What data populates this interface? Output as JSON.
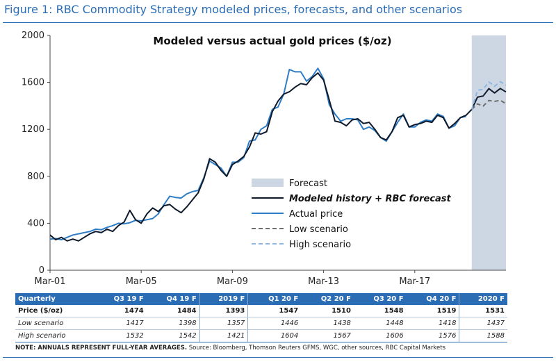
{
  "figure_title": "Figure 1: RBC Commodity Strategy modeled prices, forecasts, and other scenarios",
  "chart_data": {
    "type": "line",
    "title": "Modeled versus actual gold prices ($/oz)",
    "xlabel": "",
    "ylabel": "",
    "ylim": [
      0,
      2000
    ],
    "yticks": [
      0,
      400,
      800,
      1200,
      1600,
      2000
    ],
    "xticks": [
      "Mar-01",
      "Mar-05",
      "Mar-09",
      "Mar-13",
      "Mar-17"
    ],
    "x_range": [
      2001.0,
      2021.0
    ],
    "forecast_shade": [
      2019.5,
      2021.0
    ],
    "grid": false,
    "legend_position": "center",
    "legend": [
      {
        "label": "Forecast",
        "kind": "box",
        "color": "#cdd7e3"
      },
      {
        "label": "Modeled history + RBC forecast",
        "kind": "line",
        "color": "#0e1a2b"
      },
      {
        "label": "Actual price",
        "kind": "line",
        "color": "#2f7dc7"
      },
      {
        "label": "Low scenario",
        "kind": "dash",
        "color": "#6e6e6e"
      },
      {
        "label": "High scenario",
        "kind": "dash",
        "color": "#8eb6e2"
      }
    ],
    "series": [
      {
        "name": "Modeled history + RBC forecast",
        "color": "#0e1a2b",
        "points": [
          [
            2001.0,
            300
          ],
          [
            2001.25,
            260
          ],
          [
            2001.5,
            280
          ],
          [
            2001.75,
            250
          ],
          [
            2002.0,
            265
          ],
          [
            2002.25,
            250
          ],
          [
            2002.5,
            280
          ],
          [
            2002.75,
            310
          ],
          [
            2003.0,
            330
          ],
          [
            2003.25,
            320
          ],
          [
            2003.5,
            350
          ],
          [
            2003.75,
            330
          ],
          [
            2004.0,
            380
          ],
          [
            2004.25,
            410
          ],
          [
            2004.5,
            510
          ],
          [
            2004.75,
            430
          ],
          [
            2005.0,
            400
          ],
          [
            2005.25,
            480
          ],
          [
            2005.5,
            530
          ],
          [
            2005.75,
            500
          ],
          [
            2006.0,
            550
          ],
          [
            2006.25,
            560
          ],
          [
            2006.5,
            520
          ],
          [
            2006.75,
            490
          ],
          [
            2007.0,
            540
          ],
          [
            2007.25,
            600
          ],
          [
            2007.5,
            660
          ],
          [
            2007.75,
            780
          ],
          [
            2008.0,
            950
          ],
          [
            2008.25,
            920
          ],
          [
            2008.5,
            850
          ],
          [
            2008.75,
            800
          ],
          [
            2009.0,
            900
          ],
          [
            2009.25,
            930
          ],
          [
            2009.5,
            970
          ],
          [
            2009.75,
            1050
          ],
          [
            2010.0,
            1170
          ],
          [
            2010.25,
            1160
          ],
          [
            2010.5,
            1180
          ],
          [
            2010.75,
            1350
          ],
          [
            2011.0,
            1440
          ],
          [
            2011.25,
            1500
          ],
          [
            2011.5,
            1520
          ],
          [
            2011.75,
            1560
          ],
          [
            2012.0,
            1590
          ],
          [
            2012.25,
            1580
          ],
          [
            2012.5,
            1640
          ],
          [
            2012.75,
            1680
          ],
          [
            2013.0,
            1620
          ],
          [
            2013.25,
            1450
          ],
          [
            2013.5,
            1270
          ],
          [
            2013.75,
            1260
          ],
          [
            2014.0,
            1230
          ],
          [
            2014.25,
            1280
          ],
          [
            2014.5,
            1290
          ],
          [
            2014.75,
            1250
          ],
          [
            2015.0,
            1260
          ],
          [
            2015.25,
            1200
          ],
          [
            2015.5,
            1130
          ],
          [
            2015.75,
            1110
          ],
          [
            2016.0,
            1180
          ],
          [
            2016.25,
            1300
          ],
          [
            2016.5,
            1320
          ],
          [
            2016.75,
            1220
          ],
          [
            2017.0,
            1240
          ],
          [
            2017.25,
            1250
          ],
          [
            2017.5,
            1270
          ],
          [
            2017.75,
            1260
          ],
          [
            2018.0,
            1320
          ],
          [
            2018.25,
            1300
          ],
          [
            2018.5,
            1210
          ],
          [
            2018.75,
            1250
          ],
          [
            2019.0,
            1300
          ],
          [
            2019.25,
            1320
          ],
          [
            2019.5,
            1370
          ],
          [
            2019.75,
            1474
          ],
          [
            2020.0,
            1484
          ],
          [
            2020.25,
            1547
          ],
          [
            2020.5,
            1510
          ],
          [
            2020.75,
            1548
          ],
          [
            2021.0,
            1519
          ]
        ]
      },
      {
        "name": "Actual price",
        "color": "#2f7dc7",
        "points": [
          [
            2001.0,
            265
          ],
          [
            2001.25,
            270
          ],
          [
            2001.5,
            260
          ],
          [
            2001.75,
            280
          ],
          [
            2002.0,
            300
          ],
          [
            2002.25,
            310
          ],
          [
            2002.5,
            320
          ],
          [
            2002.75,
            330
          ],
          [
            2003.0,
            350
          ],
          [
            2003.25,
            345
          ],
          [
            2003.5,
            365
          ],
          [
            2003.75,
            380
          ],
          [
            2004.0,
            400
          ],
          [
            2004.25,
            395
          ],
          [
            2004.5,
            405
          ],
          [
            2004.75,
            425
          ],
          [
            2005.0,
            420
          ],
          [
            2005.25,
            430
          ],
          [
            2005.5,
            440
          ],
          [
            2005.75,
            480
          ],
          [
            2006.0,
            560
          ],
          [
            2006.25,
            630
          ],
          [
            2006.5,
            620
          ],
          [
            2006.75,
            615
          ],
          [
            2007.0,
            650
          ],
          [
            2007.25,
            670
          ],
          [
            2007.5,
            680
          ],
          [
            2007.75,
            790
          ],
          [
            2008.0,
            930
          ],
          [
            2008.25,
            900
          ],
          [
            2008.5,
            870
          ],
          [
            2008.75,
            800
          ],
          [
            2009.0,
            920
          ],
          [
            2009.25,
            920
          ],
          [
            2009.5,
            960
          ],
          [
            2009.75,
            1100
          ],
          [
            2010.0,
            1110
          ],
          [
            2010.25,
            1200
          ],
          [
            2010.5,
            1230
          ],
          [
            2010.75,
            1370
          ],
          [
            2011.0,
            1390
          ],
          [
            2011.25,
            1500
          ],
          [
            2011.5,
            1710
          ],
          [
            2011.75,
            1690
          ],
          [
            2012.0,
            1690
          ],
          [
            2012.25,
            1610
          ],
          [
            2012.5,
            1650
          ],
          [
            2012.75,
            1720
          ],
          [
            2013.0,
            1630
          ],
          [
            2013.25,
            1410
          ],
          [
            2013.5,
            1330
          ],
          [
            2013.75,
            1270
          ],
          [
            2014.0,
            1290
          ],
          [
            2014.25,
            1290
          ],
          [
            2014.5,
            1280
          ],
          [
            2014.75,
            1200
          ],
          [
            2015.0,
            1220
          ],
          [
            2015.25,
            1190
          ],
          [
            2015.5,
            1130
          ],
          [
            2015.75,
            1100
          ],
          [
            2016.0,
            1180
          ],
          [
            2016.25,
            1260
          ],
          [
            2016.5,
            1330
          ],
          [
            2016.75,
            1220
          ],
          [
            2017.0,
            1220
          ],
          [
            2017.25,
            1260
          ],
          [
            2017.5,
            1280
          ],
          [
            2017.75,
            1270
          ],
          [
            2018.0,
            1330
          ],
          [
            2018.25,
            1310
          ],
          [
            2018.5,
            1210
          ],
          [
            2018.75,
            1230
          ],
          [
            2019.0,
            1300
          ],
          [
            2019.25,
            1310
          ]
        ]
      },
      {
        "name": "Low scenario",
        "color": "#6e6e6e",
        "dashed": true,
        "points": [
          [
            2019.5,
            1370
          ],
          [
            2019.75,
            1417
          ],
          [
            2020.0,
            1398
          ],
          [
            2020.25,
            1446
          ],
          [
            2020.5,
            1438
          ],
          [
            2020.75,
            1448
          ],
          [
            2021.0,
            1418
          ]
        ]
      },
      {
        "name": "High scenario",
        "color": "#8eb6e2",
        "dashed": true,
        "points": [
          [
            2019.5,
            1370
          ],
          [
            2019.75,
            1532
          ],
          [
            2020.0,
            1542
          ],
          [
            2020.25,
            1604
          ],
          [
            2020.5,
            1567
          ],
          [
            2020.75,
            1606
          ],
          [
            2021.0,
            1576
          ]
        ]
      }
    ]
  },
  "table": {
    "headers": [
      "Quarterly",
      "Q3 19 F",
      "Q4 19 F",
      "2019 F",
      "Q1 20 F",
      "Q2 20 F",
      "Q3 20 F",
      "Q4 20 F",
      "2020 F"
    ],
    "rows": [
      {
        "label": "Price ($/oz)",
        "values": [
          "1474",
          "1484",
          "1393",
          "1547",
          "1510",
          "1548",
          "1519",
          "1531"
        ]
      },
      {
        "label": "Low scenario",
        "values": [
          "1417",
          "1398",
          "1357",
          "1446",
          "1438",
          "1448",
          "1418",
          "1437"
        ]
      },
      {
        "label": "High scenario",
        "values": [
          "1532",
          "1542",
          "1421",
          "1604",
          "1567",
          "1606",
          "1576",
          "1588"
        ]
      }
    ]
  },
  "note": {
    "bold": "NOTE: ANNUALS REPRESENT FULL-YEAR AVERAGES.",
    "rest": " Source: Bloomberg, Thomson Reuters GFMS, WGC, other sources, RBC Capital Markets"
  }
}
